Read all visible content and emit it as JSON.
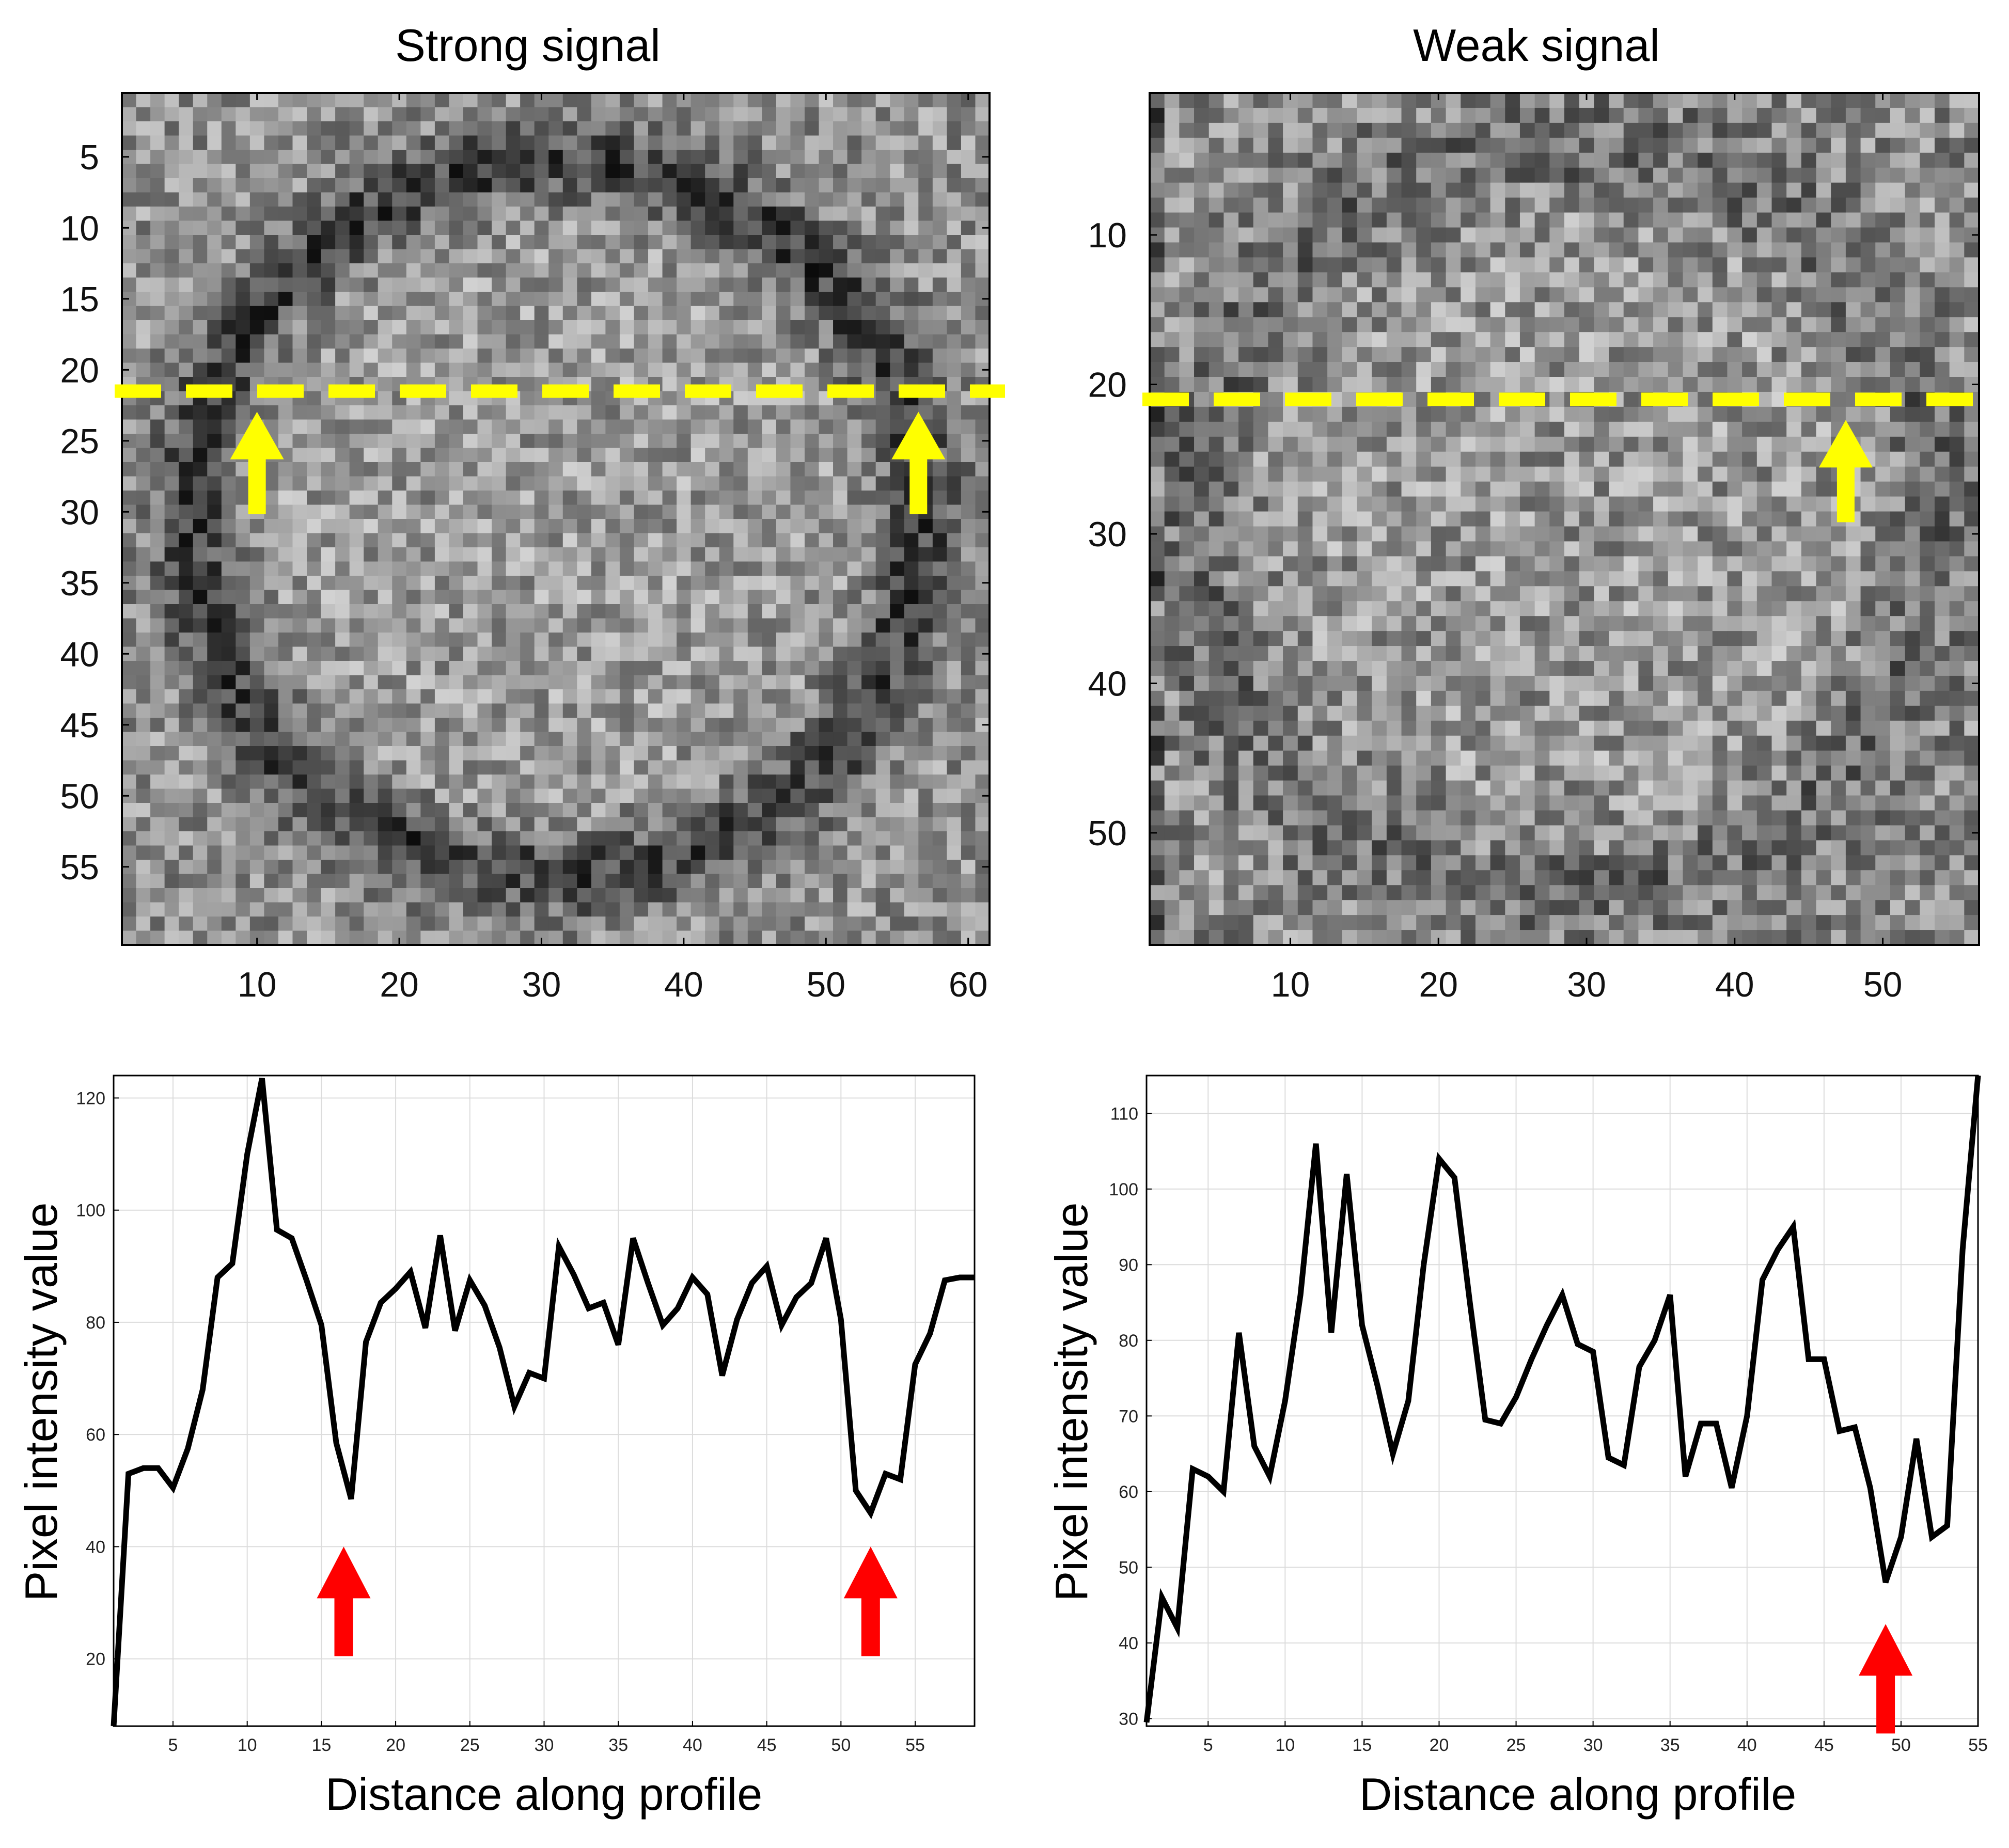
{
  "chart_data": [
    {
      "type": "heatmap",
      "id": "img_strong",
      "title": "Strong signal",
      "cols": 61,
      "rows": 60,
      "seed": 7,
      "image": "strong",
      "xticks": [
        10,
        20,
        30,
        40,
        50,
        60
      ],
      "yticks": [
        5,
        10,
        15,
        20,
        25,
        30,
        35,
        40,
        45,
        50,
        55
      ],
      "profile_row": 21.5,
      "marker_columns": [
        10,
        56.5
      ],
      "marker_color": "#ffff00"
    },
    {
      "type": "heatmap",
      "id": "img_weak",
      "title": "Weak signal",
      "cols": 56,
      "rows": 57,
      "seed": 13,
      "image": "weak",
      "xticks": [
        10,
        20,
        30,
        40,
        50
      ],
      "yticks": [
        10,
        20,
        30,
        40,
        50
      ],
      "profile_row": 21,
      "marker_columns": [
        47.5
      ],
      "marker_color": "#ffff00"
    },
    {
      "type": "line",
      "id": "prof_strong",
      "xlabel": "Distance along profile",
      "ylabel": "Pixel intensity value",
      "xlim": [
        1,
        59
      ],
      "ylim": [
        8,
        124
      ],
      "xticks": [
        5,
        10,
        15,
        20,
        25,
        30,
        35,
        40,
        45,
        50,
        55
      ],
      "yticks": [
        20,
        40,
        60,
        80,
        100,
        120
      ],
      "grid": true,
      "x": [
        1,
        2,
        3,
        4,
        5,
        6,
        7,
        8,
        9,
        10,
        11,
        12,
        13,
        14,
        15,
        16,
        17,
        18,
        19,
        20,
        21,
        22,
        23,
        24,
        25,
        26,
        27,
        28,
        29,
        30,
        31,
        32,
        33,
        34,
        35,
        36,
        37,
        38,
        39,
        40,
        41,
        42,
        43,
        44,
        45,
        46,
        47,
        48,
        49,
        50,
        51,
        52,
        53,
        54,
        55,
        56,
        57,
        58,
        59
      ],
      "y": [
        8,
        53,
        54,
        54,
        50.5,
        57.5,
        68,
        88,
        90.5,
        110,
        123.5,
        96.5,
        95,
        87.5,
        79.5,
        58.5,
        48.5,
        76.5,
        83.5,
        86,
        89,
        79,
        95.5,
        78.5,
        87.5,
        83,
        75.5,
        65,
        71,
        70,
        93.5,
        88.5,
        82.5,
        83.5,
        76,
        95,
        87,
        79.5,
        82.5,
        88,
        85,
        70.5,
        80.5,
        87,
        90,
        79.5,
        84.5,
        87,
        95,
        80.5,
        50,
        46,
        53,
        52,
        72.5,
        78,
        87.5,
        88,
        88
      ],
      "annotations": [
        {
          "x": 16.5,
          "y": 40
        },
        {
          "x": 52,
          "y": 40
        }
      ],
      "annotation_color": "#ff0000"
    },
    {
      "type": "line",
      "id": "prof_weak",
      "xlabel": "Distance along profile",
      "ylabel": "Pixel intensity value",
      "xlim": [
        1,
        55
      ],
      "ylim": [
        29,
        115
      ],
      "xticks": [
        5,
        10,
        15,
        20,
        25,
        30,
        35,
        40,
        45,
        50,
        55
      ],
      "yticks": [
        30,
        40,
        50,
        60,
        70,
        80,
        90,
        100,
        110
      ],
      "grid": true,
      "x": [
        1,
        2,
        3,
        4,
        5,
        6,
        7,
        8,
        9,
        10,
        11,
        12,
        13,
        14,
        15,
        16,
        17,
        18,
        19,
        20,
        21,
        22,
        23,
        24,
        25,
        26,
        27,
        28,
        29,
        30,
        31,
        32,
        33,
        34,
        35,
        36,
        37,
        38,
        39,
        40,
        41,
        42,
        43,
        44,
        45,
        46,
        47,
        48,
        49,
        50,
        51,
        52,
        53,
        54,
        55
      ],
      "y": [
        29.5,
        46,
        42,
        63,
        62,
        60,
        81,
        66,
        62,
        72,
        86,
        106,
        81,
        102,
        82,
        74,
        65,
        72,
        90,
        104,
        101.5,
        85,
        69.5,
        69,
        72.5,
        77.5,
        82,
        86,
        79.5,
        78.5,
        64.5,
        63.5,
        76.5,
        80,
        86,
        62,
        69,
        69,
        60.5,
        70,
        88,
        92,
        95,
        77.5,
        77.5,
        68,
        68.5,
        60.5,
        48,
        54,
        67,
        54,
        55.5,
        92,
        115
      ],
      "annotations": [
        {
          "x": 49,
          "y": 42.5
        }
      ],
      "annotation_color": "#ff0000"
    }
  ]
}
